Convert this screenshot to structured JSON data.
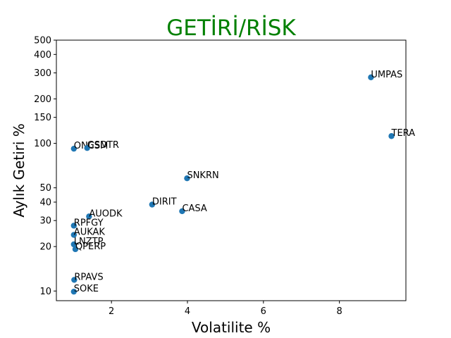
{
  "chart_data": {
    "type": "scatter",
    "title": "GETİRİ/RİSK",
    "title_color": "#008000",
    "xlabel": "Volatilite %",
    "ylabel": "Aylık Getiri %",
    "marker_color": "#1f77b4",
    "yscale": "log",
    "xlim": [
      0.55,
      9.75
    ],
    "ylim": [
      8.6,
      500
    ],
    "xticks": [
      2,
      4,
      6,
      8
    ],
    "yticks": [
      10,
      20,
      30,
      40,
      50,
      100,
      150,
      200,
      300,
      400,
      500
    ],
    "grid": false,
    "points": [
      {
        "label": "UMPAS",
        "x": 8.83,
        "y": 280
      },
      {
        "label": "TERA",
        "x": 9.37,
        "y": 112
      },
      {
        "label": "ONCSM",
        "x": 1.01,
        "y": 92
      },
      {
        "label": "GSDTR",
        "x": 1.36,
        "y": 93
      },
      {
        "label": "SNKRN",
        "x": 3.99,
        "y": 58
      },
      {
        "label": "DIRIT",
        "x": 3.07,
        "y": 38.5
      },
      {
        "label": "CASA",
        "x": 3.86,
        "y": 34.7
      },
      {
        "label": "AUODK",
        "x": 1.41,
        "y": 32
      },
      {
        "label": "RPFGY",
        "x": 1.01,
        "y": 27.7
      },
      {
        "label": "AUKAK",
        "x": 1.01,
        "y": 24
      },
      {
        "label": "LNZTP",
        "x": 1.01,
        "y": 20.7
      },
      {
        "label": "QPERP",
        "x": 1.05,
        "y": 19.2
      },
      {
        "label": "RPAVS",
        "x": 1.02,
        "y": 11.9
      },
      {
        "label": "SOKE",
        "x": 1.01,
        "y": 9.9
      }
    ]
  }
}
